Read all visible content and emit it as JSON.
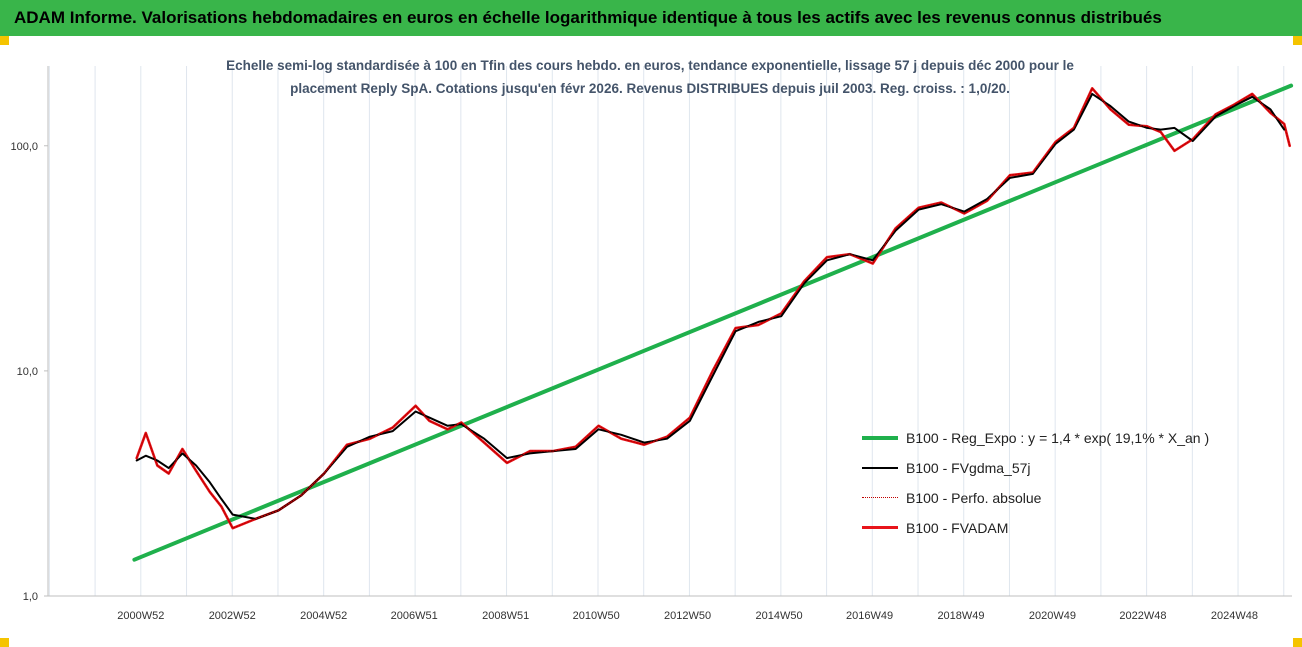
{
  "header": {
    "title": "ADAM Informe. Valorisations hebdomadaires en euros en échelle logarithmique identique à tous les actifs avec les revenus connus distribués"
  },
  "chart_data": {
    "type": "line",
    "subtitle_lines": [
      "Echelle semi-log standardisée à 100 en Tfin des cours hebdo. en euros, tendance exponentielle, lissage 57 j depuis déc 2000 pour le",
      "placement Reply SpA. Cotations jusqu'en févr 2026.  Revenus DISTRIBUES depuis juil 2003.  Reg. croiss. : 1,0/20."
    ],
    "y_scale": "log",
    "ylim": [
      1,
      200
    ],
    "y_ticks": [
      1,
      10,
      100
    ],
    "y_tick_labels": [
      "1,0",
      "10,0",
      "100,0"
    ],
    "x_range": [
      1998.96,
      2026.17
    ],
    "x_ticks": [
      2000.99,
      2002.99,
      2004.99,
      2006.97,
      2008.97,
      2010.95,
      2012.95,
      2014.95,
      2016.93,
      2018.93,
      2020.93,
      2022.91,
      2024.91
    ],
    "x_tick_labels": [
      "2000W52",
      "2002W52",
      "2004W52",
      "2006W51",
      "2008W51",
      "2010W50",
      "2012W50",
      "2014W50",
      "2016W49",
      "2018W49",
      "2020W49",
      "2022W48",
      "2024W48"
    ],
    "grid": "vertical",
    "legend_position": "right",
    "series": [
      {
        "name": "B100 - Reg_Expo : y = 1,4 * exp( 19,1% *  X_an )",
        "color": "#1fb04c",
        "style": "solid",
        "x": [
          2000.85,
          2026.15
        ],
        "values": [
          1.45,
          185
        ]
      },
      {
        "name": "B100 - FVgdma_57j",
        "color": "#000000",
        "style": "solid",
        "x": [
          2000.9,
          2001.1,
          2001.35,
          2001.6,
          2001.9,
          2002.2,
          2002.5,
          2002.75,
          2003.0,
          2003.5,
          2004.0,
          2004.5,
          2005.0,
          2005.5,
          2006.0,
          2006.5,
          2007.0,
          2007.3,
          2007.7,
          2008.0,
          2008.5,
          2009.0,
          2009.5,
          2010.0,
          2010.5,
          2011.0,
          2011.5,
          2012.0,
          2012.5,
          2013.0,
          2013.5,
          2014.0,
          2014.5,
          2015.0,
          2015.5,
          2016.0,
          2016.5,
          2017.0,
          2017.5,
          2018.0,
          2018.5,
          2019.0,
          2019.5,
          2020.0,
          2020.5,
          2021.0,
          2021.4,
          2021.8,
          2022.2,
          2022.6,
          2023.0,
          2023.3,
          2023.6,
          2024.0,
          2024.5,
          2024.9,
          2025.3,
          2025.7,
          2026.0
        ],
        "values": [
          4.0,
          4.2,
          4.0,
          3.7,
          4.3,
          3.8,
          3.2,
          2.7,
          2.3,
          2.2,
          2.4,
          2.8,
          3.5,
          4.6,
          5.1,
          5.4,
          6.6,
          6.2,
          5.7,
          5.8,
          5.0,
          4.1,
          4.3,
          4.4,
          4.5,
          5.5,
          5.2,
          4.8,
          5.0,
          6.0,
          9.5,
          15.0,
          16.5,
          17.5,
          24.5,
          31.0,
          33.0,
          31.0,
          42.0,
          52.0,
          55.0,
          51.0,
          58.0,
          72.0,
          75.0,
          102.0,
          118.0,
          170.0,
          150.0,
          128.0,
          120.0,
          118.0,
          120.0,
          105.0,
          135.0,
          150.0,
          165.0,
          145.0,
          118.0
        ]
      },
      {
        "name": "B100 - Perfo. absolue",
        "color": "#c00000",
        "style": "dotted",
        "x": [
          2000.9,
          2001.1,
          2001.35,
          2001.6,
          2001.9,
          2002.2,
          2002.5,
          2002.75,
          2003.0,
          2003.5,
          2004.0,
          2004.5,
          2005.0,
          2005.5,
          2006.0,
          2006.5,
          2007.0,
          2007.3,
          2007.7,
          2008.0,
          2008.5,
          2009.0,
          2009.5,
          2010.0,
          2010.5,
          2011.0,
          2011.5,
          2012.0,
          2012.5,
          2013.0,
          2013.5,
          2014.0,
          2014.5,
          2015.0,
          2015.5,
          2016.0,
          2016.5,
          2017.0,
          2017.5,
          2018.0,
          2018.5,
          2019.0,
          2019.5,
          2020.0,
          2020.5,
          2021.0,
          2021.4,
          2021.8,
          2022.2,
          2022.6,
          2023.0,
          2023.3,
          2023.6,
          2024.0,
          2024.5,
          2024.9,
          2025.3,
          2025.7,
          2026.0,
          2026.12
        ],
        "values": [
          4.1,
          5.3,
          3.8,
          3.5,
          4.5,
          3.6,
          2.9,
          2.5,
          2.0,
          2.2,
          2.4,
          2.8,
          3.5,
          4.7,
          5.0,
          5.6,
          7.0,
          6.0,
          5.5,
          5.9,
          4.8,
          3.9,
          4.4,
          4.4,
          4.6,
          5.7,
          5.0,
          4.7,
          5.1,
          6.2,
          10.0,
          15.5,
          16.0,
          18.0,
          25.0,
          32.0,
          33.0,
          30.0,
          43.0,
          53.0,
          56.0,
          50.0,
          57.0,
          74.0,
          76.0,
          104.0,
          120.0,
          180.0,
          145.0,
          124.0,
          122.0,
          115.0,
          95.0,
          107.0,
          138.0,
          152.0,
          170.0,
          140.0,
          125.0,
          100.0
        ]
      },
      {
        "name": "B100 - FVADAM",
        "color": "#e8141b",
        "style": "solid",
        "x": [
          2000.9,
          2001.1,
          2001.35,
          2001.6,
          2001.9,
          2002.2,
          2002.5,
          2002.75,
          2003.0,
          2003.5,
          2004.0,
          2004.5,
          2005.0,
          2005.5,
          2006.0,
          2006.5,
          2007.0,
          2007.3,
          2007.7,
          2008.0,
          2008.5,
          2009.0,
          2009.5,
          2010.0,
          2010.5,
          2011.0,
          2011.5,
          2012.0,
          2012.5,
          2013.0,
          2013.5,
          2014.0,
          2014.5,
          2015.0,
          2015.5,
          2016.0,
          2016.5,
          2017.0,
          2017.5,
          2018.0,
          2018.5,
          2019.0,
          2019.5,
          2020.0,
          2020.5,
          2021.0,
          2021.4,
          2021.8,
          2022.2,
          2022.6,
          2023.0,
          2023.3,
          2023.6,
          2024.0,
          2024.5,
          2024.9,
          2025.3,
          2025.7,
          2026.0,
          2026.12
        ],
        "values": [
          4.1,
          5.3,
          3.8,
          3.5,
          4.5,
          3.6,
          2.9,
          2.5,
          2.0,
          2.2,
          2.4,
          2.8,
          3.5,
          4.7,
          5.0,
          5.6,
          7.0,
          6.0,
          5.5,
          5.9,
          4.8,
          3.9,
          4.4,
          4.4,
          4.6,
          5.7,
          5.0,
          4.7,
          5.1,
          6.2,
          10.0,
          15.5,
          16.0,
          18.0,
          25.0,
          32.0,
          33.0,
          30.0,
          43.0,
          53.0,
          56.0,
          50.0,
          57.0,
          74.0,
          76.0,
          104.0,
          120.0,
          180.0,
          145.0,
          124.0,
          122.0,
          115.0,
          95.0,
          107.0,
          138.0,
          152.0,
          170.0,
          140.0,
          125.0,
          100.0
        ]
      }
    ]
  }
}
